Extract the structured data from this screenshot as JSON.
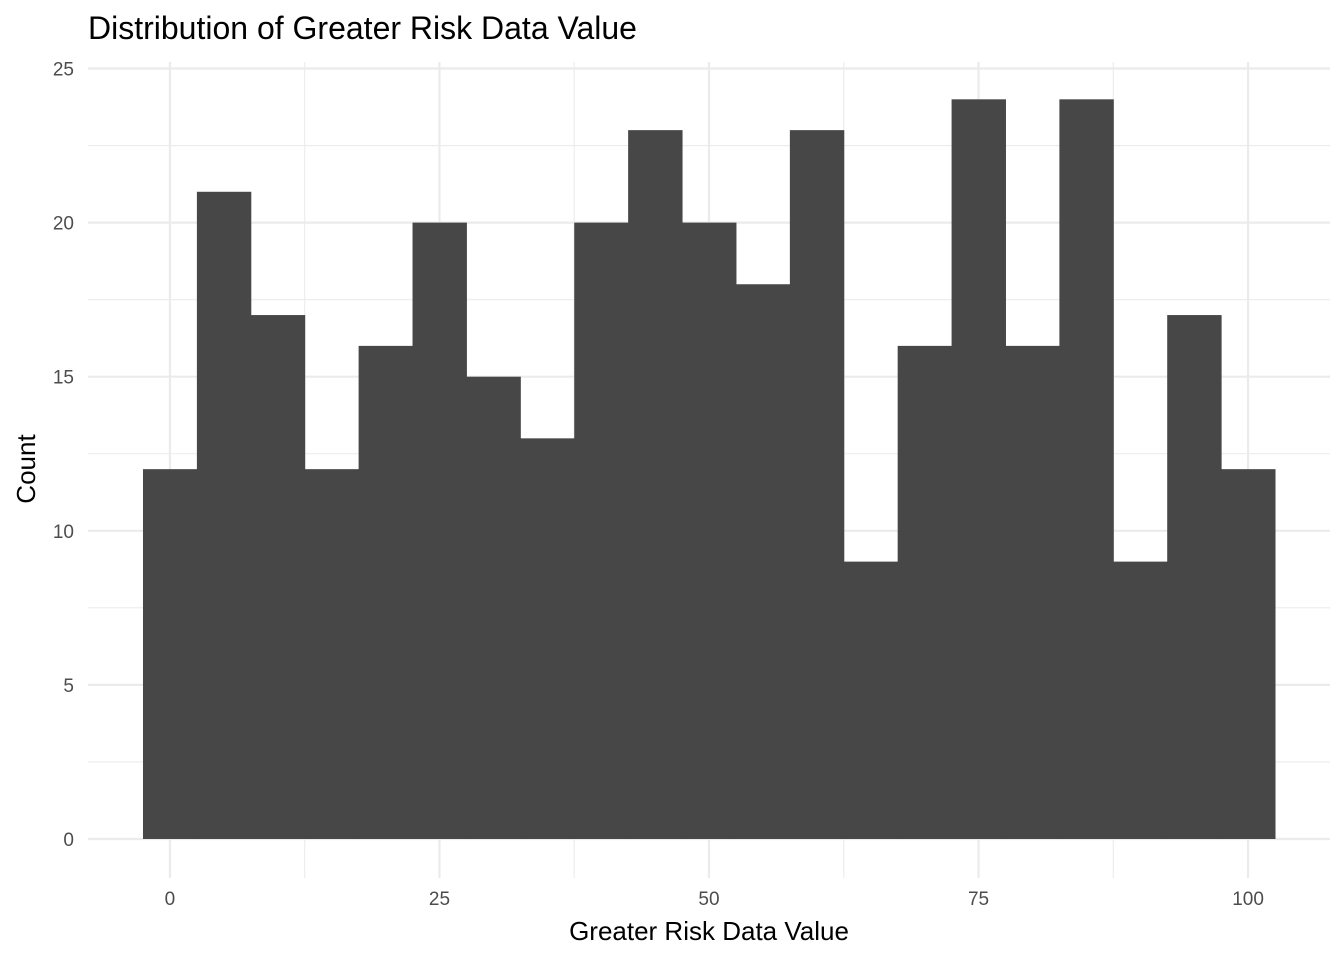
{
  "chart_data": {
    "type": "bar",
    "title": "Distribution of Greater Risk Data Value",
    "xlabel": "Greater Risk Data Value",
    "ylabel": "Count",
    "bin_width": 5,
    "bins": [
      {
        "x0": -2.5,
        "x1": 2.5,
        "count": 12
      },
      {
        "x0": 2.5,
        "x1": 7.5,
        "count": 21
      },
      {
        "x0": 7.5,
        "x1": 12.5,
        "count": 17
      },
      {
        "x0": 12.5,
        "x1": 17.5,
        "count": 12
      },
      {
        "x0": 17.5,
        "x1": 22.5,
        "count": 16
      },
      {
        "x0": 22.5,
        "x1": 27.5,
        "count": 20
      },
      {
        "x0": 27.5,
        "x1": 32.5,
        "count": 15
      },
      {
        "x0": 32.5,
        "x1": 37.5,
        "count": 13
      },
      {
        "x0": 37.5,
        "x1": 42.5,
        "count": 20
      },
      {
        "x0": 42.5,
        "x1": 47.5,
        "count": 23
      },
      {
        "x0": 47.5,
        "x1": 52.5,
        "count": 20
      },
      {
        "x0": 52.5,
        "x1": 57.5,
        "count": 18
      },
      {
        "x0": 57.5,
        "x1": 62.5,
        "count": 23
      },
      {
        "x0": 62.5,
        "x1": 67.5,
        "count": 9
      },
      {
        "x0": 67.5,
        "x1": 72.5,
        "count": 16
      },
      {
        "x0": 72.5,
        "x1": 77.5,
        "count": 24
      },
      {
        "x0": 77.5,
        "x1": 82.5,
        "count": 16
      },
      {
        "x0": 82.5,
        "x1": 87.5,
        "count": 24
      },
      {
        "x0": 87.5,
        "x1": 92.5,
        "count": 9
      },
      {
        "x0": 92.5,
        "x1": 97.5,
        "count": 17
      },
      {
        "x0": 97.5,
        "x1": 102.5,
        "count": 12
      }
    ],
    "xlim": [
      -7.6,
      107.6
    ],
    "ylim": [
      -1.2,
      25
    ],
    "x_ticks": [
      0,
      25,
      50,
      75,
      100
    ],
    "x_tick_labels": [
      "0",
      "25",
      "50",
      "75",
      "100"
    ],
    "x_minor_ticks": [
      12.5,
      37.5,
      62.5,
      87.5
    ],
    "y_ticks": [
      0,
      5,
      10,
      15,
      20,
      25
    ],
    "y_tick_labels": [
      "0",
      "5",
      "10",
      "15",
      "20",
      "25"
    ],
    "y_minor_ticks": [
      2.5,
      7.5,
      12.5,
      17.5,
      22.5
    ],
    "grid": true,
    "legend": "none",
    "bar_color": "#474747",
    "grid_color": "#ebebeb",
    "background_color": "#ffffff"
  }
}
